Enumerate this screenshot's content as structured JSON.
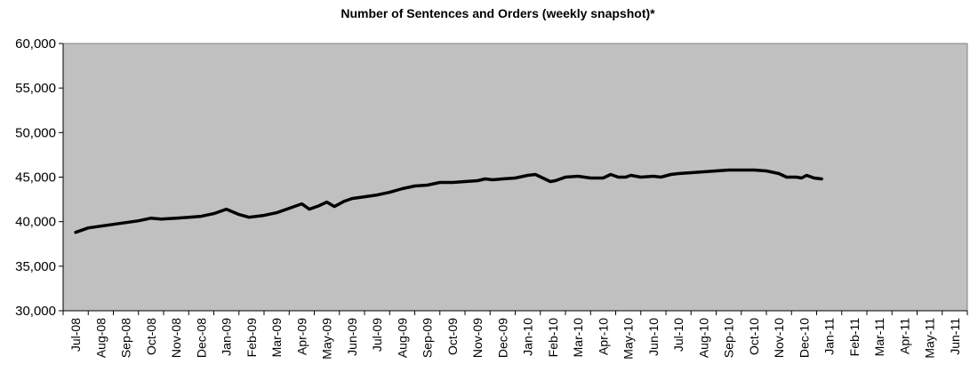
{
  "chart_data": {
    "type": "line",
    "title": "Number of Sentences and Orders (weekly snapshot)*",
    "xlabel": "",
    "ylabel": "",
    "ylim": [
      30000,
      60000
    ],
    "yticks": [
      "30,000",
      "35,000",
      "40,000",
      "45,000",
      "50,000",
      "55,000",
      "60,000"
    ],
    "categories": [
      "Jul-08",
      "Aug-08",
      "Sep-08",
      "Oct-08",
      "Nov-08",
      "Dec-08",
      "Jan-09",
      "Feb-09",
      "Mar-09",
      "Apr-09",
      "May-09",
      "Jun-09",
      "Jul-09",
      "Aug-09",
      "Sep-09",
      "Oct-09",
      "Nov-09",
      "Dec-09",
      "Jan-10",
      "Feb-10",
      "Mar-10",
      "Apr-10",
      "May-10",
      "Jun-10",
      "Jul-10",
      "Aug-10",
      "Sep-10",
      "Oct-10",
      "Nov-10",
      "Dec-10",
      "Jan-11",
      "Feb-11",
      "Mar-11",
      "Apr-11",
      "May-11",
      "Jun-11"
    ],
    "grid": false,
    "plot_background": "#c0c0c0",
    "line_color": "#000000",
    "series": [
      {
        "values": [
          [
            0.0,
            38800
          ],
          [
            0.5,
            39300
          ],
          [
            1.0,
            39500
          ],
          [
            1.5,
            39700
          ],
          [
            2.0,
            39900
          ],
          [
            2.5,
            40100
          ],
          [
            3.0,
            40400
          ],
          [
            3.4,
            40300
          ],
          [
            4.0,
            40400
          ],
          [
            4.5,
            40500
          ],
          [
            5.0,
            40600
          ],
          [
            5.5,
            40900
          ],
          [
            6.0,
            41400
          ],
          [
            6.5,
            40800
          ],
          [
            6.9,
            40500
          ],
          [
            7.5,
            40700
          ],
          [
            8.0,
            41000
          ],
          [
            8.5,
            41500
          ],
          [
            9.0,
            42000
          ],
          [
            9.3,
            41400
          ],
          [
            9.7,
            41800
          ],
          [
            10.0,
            42200
          ],
          [
            10.3,
            41700
          ],
          [
            10.7,
            42300
          ],
          [
            11.0,
            42600
          ],
          [
            11.5,
            42800
          ],
          [
            12.0,
            43000
          ],
          [
            12.5,
            43300
          ],
          [
            13.0,
            43700
          ],
          [
            13.5,
            44000
          ],
          [
            14.0,
            44100
          ],
          [
            14.5,
            44400
          ],
          [
            15.0,
            44400
          ],
          [
            15.5,
            44500
          ],
          [
            16.0,
            44600
          ],
          [
            16.3,
            44800
          ],
          [
            16.6,
            44700
          ],
          [
            17.0,
            44800
          ],
          [
            17.5,
            44900
          ],
          [
            18.0,
            45200
          ],
          [
            18.3,
            45300
          ],
          [
            18.6,
            44900
          ],
          [
            18.9,
            44500
          ],
          [
            19.1,
            44600
          ],
          [
            19.5,
            45000
          ],
          [
            20.0,
            45100
          ],
          [
            20.5,
            44900
          ],
          [
            21.0,
            44900
          ],
          [
            21.3,
            45300
          ],
          [
            21.6,
            45000
          ],
          [
            21.9,
            45000
          ],
          [
            22.1,
            45200
          ],
          [
            22.5,
            45000
          ],
          [
            23.0,
            45100
          ],
          [
            23.3,
            45000
          ],
          [
            23.7,
            45300
          ],
          [
            24.0,
            45400
          ],
          [
            24.5,
            45500
          ],
          [
            25.0,
            45600
          ],
          [
            25.5,
            45700
          ],
          [
            26.0,
            45800
          ],
          [
            26.5,
            45800
          ],
          [
            27.0,
            45800
          ],
          [
            27.5,
            45700
          ],
          [
            28.0,
            45400
          ],
          [
            28.3,
            45000
          ],
          [
            28.7,
            45000
          ],
          [
            28.9,
            44900
          ],
          [
            29.1,
            45200
          ],
          [
            29.4,
            44900
          ],
          [
            29.7,
            44800
          ]
        ]
      }
    ]
  }
}
